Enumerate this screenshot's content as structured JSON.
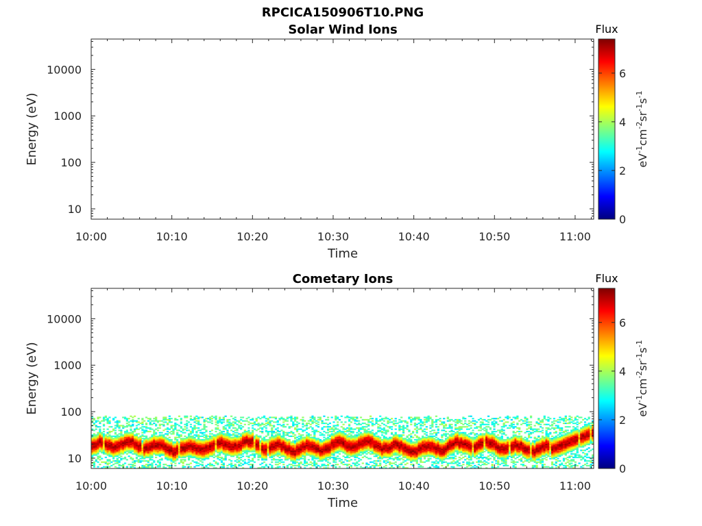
{
  "figure_title": "RPCICA150906T10.PNG",
  "colormap": [
    "#00007f",
    "#0000ff",
    "#007fff",
    "#00ffff",
    "#7fff7f",
    "#ffff00",
    "#ff7f00",
    "#ff0000",
    "#7f0000"
  ],
  "chart_data": [
    {
      "type": "heatmap",
      "title": "Solar Wind Ions",
      "xlabel": "Time",
      "ylabel": "Energy (eV)",
      "x_ticks": [
        "10:00",
        "10:10",
        "10:20",
        "10:30",
        "10:40",
        "10:50",
        "11:00"
      ],
      "x_tick_minutes": [
        0,
        10,
        20,
        30,
        40,
        50,
        60
      ],
      "xlim_minutes": [
        0,
        62.3
      ],
      "y_scale": "log",
      "ylim": [
        6,
        45000
      ],
      "y_ticks": [
        10,
        100,
        1000,
        10000
      ],
      "y_tick_labels": [
        "10",
        "100",
        "1000",
        "10000"
      ],
      "colorbar": {
        "title": "Flux",
        "label": "eV-1cm-2sr-1s-1",
        "range": [
          0,
          7.4
        ],
        "ticks": [
          0,
          2,
          4,
          6
        ],
        "tick_labels": [
          "0",
          "2",
          "4",
          "6"
        ]
      },
      "data": "empty"
    },
    {
      "type": "heatmap",
      "title": "Cometary Ions",
      "xlabel": "Time",
      "ylabel": "Energy (eV)",
      "x_ticks": [
        "10:00",
        "10:10",
        "10:20",
        "10:30",
        "10:40",
        "10:50",
        "11:00"
      ],
      "x_tick_minutes": [
        0,
        10,
        20,
        30,
        40,
        50,
        60
      ],
      "xlim_minutes": [
        0,
        62.3
      ],
      "y_scale": "log",
      "ylim": [
        6,
        45000
      ],
      "y_ticks": [
        10,
        100,
        1000,
        10000
      ],
      "y_tick_labels": [
        "10",
        "100",
        "1000",
        "10000"
      ],
      "colorbar": {
        "title": "Flux",
        "label": "eV-1cm-2sr-1s-1",
        "range": [
          0,
          7.4
        ],
        "ticks": [
          0,
          2,
          4,
          6
        ],
        "tick_labels": [
          "0",
          "2",
          "4",
          "6"
        ]
      },
      "band": {
        "energy_peak_eV": 18,
        "energy_core_range_eV": [
          10,
          30
        ],
        "energy_min_eV": 6,
        "energy_max_eV": 85,
        "peak_flux": 7,
        "background_flux": 2.5,
        "end_feature_peak_eV": 35
      }
    }
  ]
}
